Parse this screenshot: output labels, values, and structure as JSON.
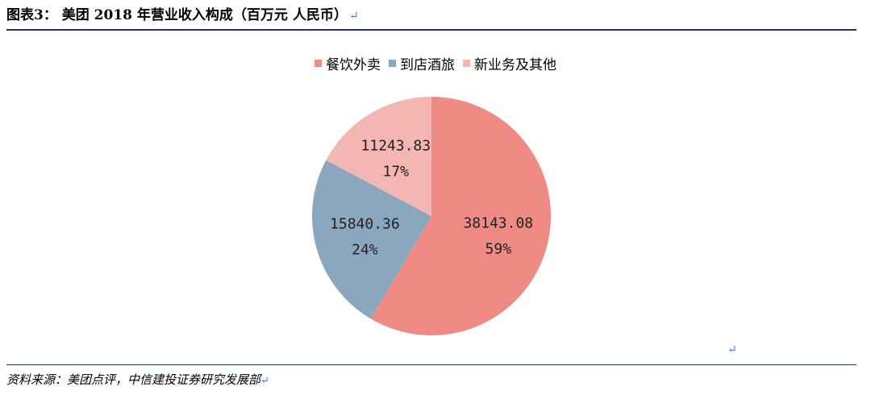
{
  "header": {
    "title": "图表3： 美团 2018 年营业收入构成（百万元  人民币）",
    "return_mark": "↵"
  },
  "footer": {
    "source": "资料来源：美团点评，中信建投证券研究发展部",
    "return_mark": "↵"
  },
  "note_mark": "↵",
  "chart_data": {
    "type": "pie",
    "title": "",
    "legend_position": "top",
    "categories": [
      "餐饮外卖",
      "到店酒旅",
      "新业务及其他"
    ],
    "values": [
      38143.08,
      15840.36,
      11243.83
    ],
    "value_labels": [
      "38143.08",
      "15840.36",
      "11243.83"
    ],
    "percent_labels": [
      "59%",
      "24%",
      "17%"
    ],
    "colors": [
      "#f08a85",
      "#8ba7be",
      "#f4b6b3"
    ]
  }
}
